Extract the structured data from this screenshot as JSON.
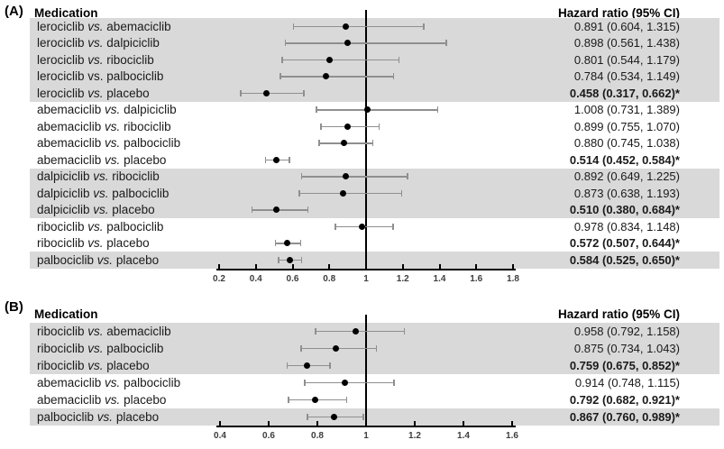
{
  "colors": {
    "row_shade": "#d9d9d9",
    "ci_color": "#8f8f8f",
    "marker_color": "#000000",
    "axis_color": "#000000",
    "axis_label_color": "#3d3d3d"
  },
  "chart_data": [
    {
      "type": "forest",
      "panel": "(A)",
      "col_header_left": "Medication",
      "col_header_right": "Hazard ratio (95% CI)",
      "vs_label": "vs.",
      "axis": {
        "min": 0.2,
        "max": 1.8,
        "ref_line": 1,
        "ticks": [
          "0.2",
          "0.4",
          "0.6",
          "0.8",
          "1",
          "1.2",
          "1.4",
          "1.6",
          "1.8"
        ]
      },
      "rows": [
        {
          "left": "lerociclib",
          "right": "abemaciclib",
          "hr": 0.891,
          "lo": 0.604,
          "hi": 1.315,
          "text": "0.891 (0.604, 1.315)",
          "significant": false,
          "shaded": true,
          "vs_italic": true
        },
        {
          "left": "lerociclib",
          "right": "dalpiciclib",
          "hr": 0.898,
          "lo": 0.561,
          "hi": 1.438,
          "text": "0.898 (0.561, 1.438)",
          "significant": false,
          "shaded": true,
          "vs_italic": true
        },
        {
          "left": "lerociclib",
          "right": "ribociclib",
          "hr": 0.801,
          "lo": 0.544,
          "hi": 1.179,
          "text": "0.801 (0.544, 1.179)",
          "significant": false,
          "shaded": true,
          "vs_italic": true
        },
        {
          "left": "lerociclib",
          "right": "palbociclib",
          "hr": 0.784,
          "lo": 0.534,
          "hi": 1.149,
          "text": "0.784 (0.534, 1.149)",
          "significant": false,
          "shaded": true,
          "vs_italic": false
        },
        {
          "left": "lerociclib",
          "right": "placebo",
          "hr": 0.458,
          "lo": 0.317,
          "hi": 0.662,
          "text": "0.458 (0.317, 0.662)*",
          "significant": true,
          "shaded": true,
          "vs_italic": true
        },
        {
          "left": "abemaciclib",
          "right": "dalpiciclib",
          "hr": 1.008,
          "lo": 0.731,
          "hi": 1.389,
          "text": "1.008 (0.731, 1.389)",
          "significant": false,
          "shaded": false,
          "vs_italic": true
        },
        {
          "left": "abemaciclib",
          "right": "ribociclib",
          "hr": 0.899,
          "lo": 0.755,
          "hi": 1.07,
          "text": "0.899 (0.755, 1.070)",
          "significant": false,
          "shaded": false,
          "vs_italic": true
        },
        {
          "left": "abemaciclib",
          "right": "palbociclib",
          "hr": 0.88,
          "lo": 0.745,
          "hi": 1.038,
          "text": "0.880 (0.745, 1.038)",
          "significant": false,
          "shaded": false,
          "vs_italic": true
        },
        {
          "left": "abemaciclib",
          "right": "placebo",
          "hr": 0.514,
          "lo": 0.452,
          "hi": 0.584,
          "text": "0.514 (0.452, 0.584)*",
          "significant": true,
          "shaded": false,
          "vs_italic": true
        },
        {
          "left": "dalpiciclib",
          "right": "ribociclib",
          "hr": 0.892,
          "lo": 0.649,
          "hi": 1.225,
          "text": "0.892 (0.649, 1.225)",
          "significant": false,
          "shaded": true,
          "vs_italic": true
        },
        {
          "left": "dalpiciclib",
          "right": "palbociclib",
          "hr": 0.873,
          "lo": 0.638,
          "hi": 1.193,
          "text": "0.873 (0.638, 1.193)",
          "significant": false,
          "shaded": true,
          "vs_italic": true
        },
        {
          "left": "dalpiciclib",
          "right": "placebo",
          "hr": 0.51,
          "lo": 0.38,
          "hi": 0.684,
          "text": "0.510 (0.380, 0.684)*",
          "significant": true,
          "shaded": true,
          "vs_italic": true
        },
        {
          "left": "ribociclib",
          "right": "palbociclib",
          "hr": 0.978,
          "lo": 0.834,
          "hi": 1.148,
          "text": "0.978 (0.834, 1.148)",
          "significant": false,
          "shaded": false,
          "vs_italic": true
        },
        {
          "left": "ribociclib",
          "right": "placebo",
          "hr": 0.572,
          "lo": 0.507,
          "hi": 0.644,
          "text": "0.572 (0.507, 0.644)*",
          "significant": true,
          "shaded": false,
          "vs_italic": true
        },
        {
          "left": "palbociclib",
          "right": "placebo",
          "hr": 0.584,
          "lo": 0.525,
          "hi": 0.65,
          "text": "0.584 (0.525, 0.650)*",
          "significant": true,
          "shaded": true,
          "vs_italic": true
        }
      ]
    },
    {
      "type": "forest",
      "panel": "(B)",
      "col_header_left": "Medication",
      "col_header_right": "Hazard ratio (95% CI)",
      "vs_label": "vs.",
      "axis": {
        "min": 0.4,
        "max": 1.6,
        "ref_line": 1,
        "ticks": [
          "0.4",
          "0.6",
          "0.8",
          "1",
          "1.2",
          "1.4",
          "1.6"
        ]
      },
      "rows": [
        {
          "left": "ribociclib",
          "right": "abemaciclib",
          "hr": 0.958,
          "lo": 0.792,
          "hi": 1.158,
          "text": "0.958 (0.792, 1.158)",
          "significant": false,
          "shaded": true,
          "vs_italic": true
        },
        {
          "left": "ribociclib",
          "right": "palbociclib",
          "hr": 0.875,
          "lo": 0.734,
          "hi": 1.043,
          "text": "0.875 (0.734, 1.043)",
          "significant": false,
          "shaded": true,
          "vs_italic": true
        },
        {
          "left": "ribociclib",
          "right": "placebo",
          "hr": 0.759,
          "lo": 0.675,
          "hi": 0.852,
          "text": "0.759 (0.675, 0.852)*",
          "significant": true,
          "shaded": true,
          "vs_italic": true
        },
        {
          "left": "abemaciclib",
          "right": "palbociclib",
          "hr": 0.914,
          "lo": 0.748,
          "hi": 1.115,
          "text": "0.914 (0.748, 1.115)",
          "significant": false,
          "shaded": false,
          "vs_italic": true
        },
        {
          "left": "abemaciclib",
          "right": "placebo",
          "hr": 0.792,
          "lo": 0.682,
          "hi": 0.921,
          "text": "0.792 (0.682, 0.921)*",
          "significant": true,
          "shaded": false,
          "vs_italic": true
        },
        {
          "left": "palbociclib",
          "right": "placebo",
          "hr": 0.867,
          "lo": 0.76,
          "hi": 0.989,
          "text": "0.867 (0.760, 0.989)*",
          "significant": true,
          "shaded": true,
          "vs_italic": true
        }
      ]
    }
  ]
}
